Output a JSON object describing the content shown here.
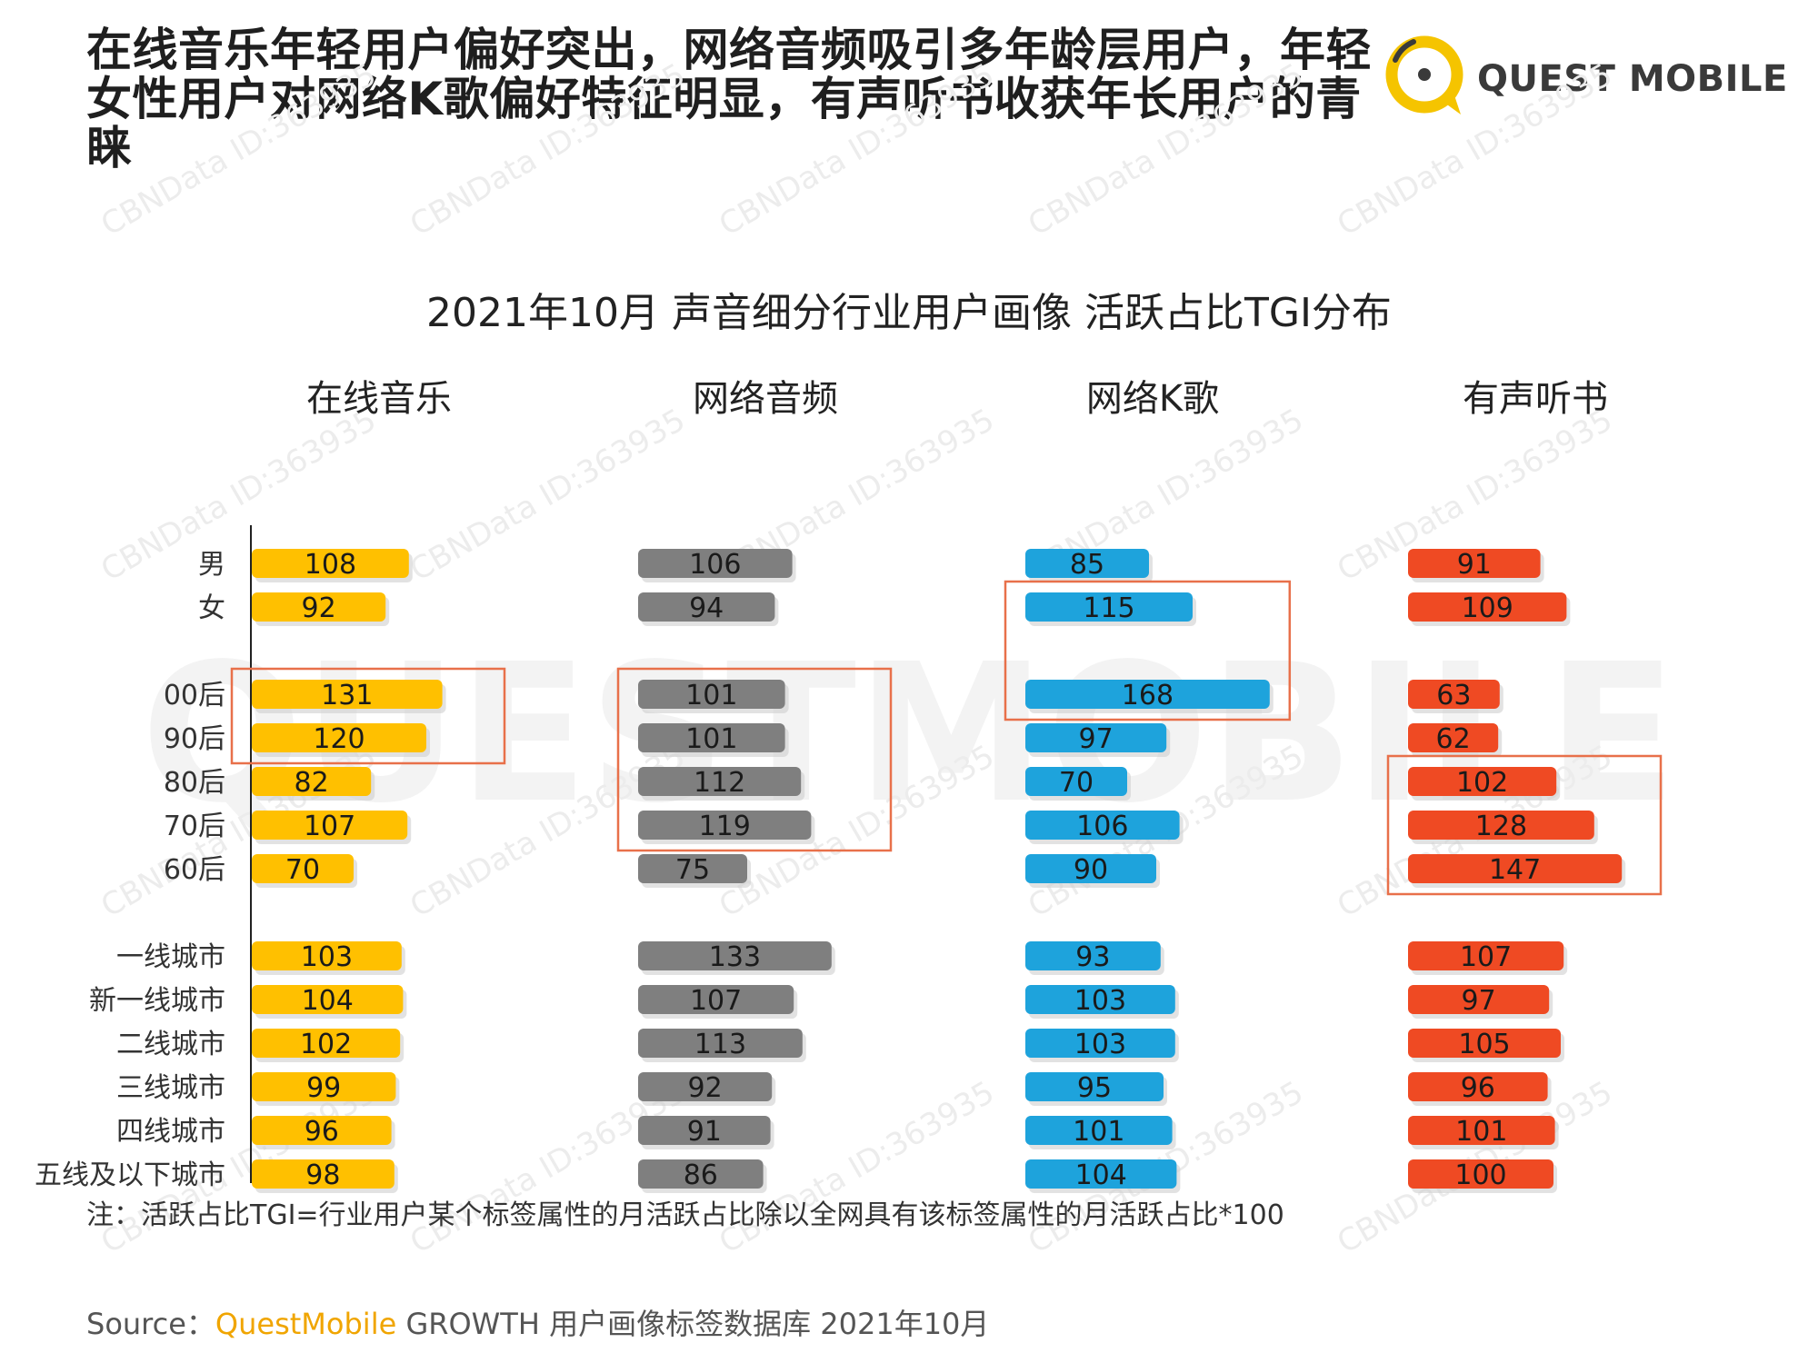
{
  "headline": "在线音乐年轻用户偏好突出，网络音频吸引多年龄层用户，年轻女性用户对网络K歌偏好特征明显，有声听书收获年长用户的青睐",
  "logo": {
    "text": "QUEST MOBILE",
    "icon": "quest-mobile-logo-icon"
  },
  "watermark": {
    "text": "CBNData ID:363935",
    "background_text": "QUESTMOBILE"
  },
  "note": "注：活跃占比TGI=行业用户某个标签属性的月活跃占比除以全网具有该标签属性的月活跃占比*100",
  "source": {
    "prefix": "Source：",
    "brand": "QuestMobile",
    "rest": " GROWTH 用户画像标签数据库 2021年10月"
  },
  "colors": {
    "music": "#ffc000",
    "audio": "#7f7f7f",
    "karaoke": "#1ea3dc",
    "audiobook": "#ef4a23",
    "highlight_box": "#e8704a",
    "brand_yellow": "#f5c400"
  },
  "chart_data": {
    "type": "bar",
    "orientation": "horizontal",
    "title": "2021年10月 声音细分行业用户画像 活跃占比TGI分布",
    "categories": [
      "男",
      "女",
      "00后",
      "90后",
      "80后",
      "70后",
      "60后",
      "一线城市",
      "新一线城市",
      "二线城市",
      "三线城市",
      "四线城市",
      "五线及以下城市"
    ],
    "groups": [
      [
        "男",
        "女"
      ],
      [
        "00后",
        "90后",
        "80后",
        "70后",
        "60后"
      ],
      [
        "一线城市",
        "新一线城市",
        "二线城市",
        "三线城市",
        "四线城市",
        "五线及以下城市"
      ]
    ],
    "series": [
      {
        "name": "在线音乐",
        "color": "#ffc000",
        "values": [
          108,
          92,
          131,
          120,
          82,
          107,
          70,
          103,
          104,
          102,
          99,
          96,
          98
        ]
      },
      {
        "name": "网络音频",
        "color": "#7f7f7f",
        "values": [
          106,
          94,
          101,
          101,
          112,
          119,
          75,
          133,
          107,
          113,
          92,
          91,
          86
        ]
      },
      {
        "name": "网络K歌",
        "color": "#1ea3dc",
        "values": [
          85,
          115,
          168,
          97,
          70,
          106,
          90,
          93,
          103,
          103,
          95,
          101,
          104
        ]
      },
      {
        "name": "有声听书",
        "color": "#ef4a23",
        "values": [
          91,
          109,
          63,
          62,
          102,
          128,
          147,
          107,
          97,
          105,
          96,
          101,
          100
        ]
      }
    ],
    "highlights": [
      {
        "series": "在线音乐",
        "categories": [
          "00后",
          "90后"
        ]
      },
      {
        "series": "网络音频",
        "categories": [
          "00后",
          "90后",
          "80后",
          "70后"
        ]
      },
      {
        "series": "网络K歌",
        "categories": [
          "女",
          "00后"
        ]
      },
      {
        "series": "有声听书",
        "categories": [
          "80后",
          "70后",
          "60后"
        ]
      }
    ]
  }
}
